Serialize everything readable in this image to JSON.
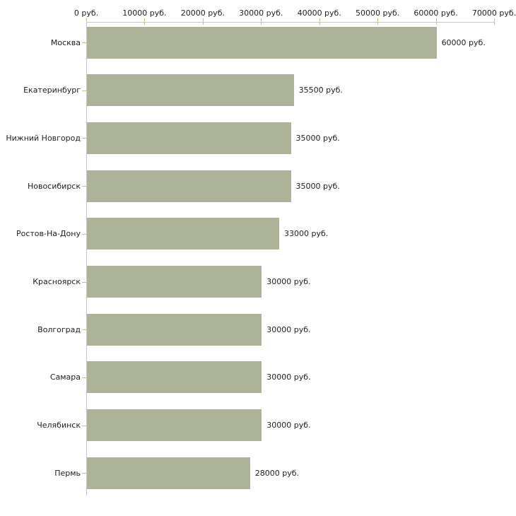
{
  "chart_data": {
    "type": "bar",
    "orientation": "horizontal",
    "title": "",
    "categories": [
      "Москва",
      "Екатеринбург",
      "Нижний Новгород",
      "Новосибирск",
      "Ростов-На-Дону",
      "Красноярск",
      "Волгоград",
      "Самара",
      "Челябинск",
      "Пермь"
    ],
    "values": [
      60000,
      35500,
      35000,
      35000,
      33000,
      30000,
      30000,
      30000,
      30000,
      28000
    ],
    "bar_labels": [
      "60000 руб.",
      "35500 руб.",
      "35000 руб.",
      "35000 руб.",
      "33000 руб.",
      "30000 руб.",
      "30000 руб.",
      "30000 руб.",
      "30000 руб.",
      "28000 руб."
    ],
    "x_axis": {
      "position": "top",
      "min": 0,
      "max": 70000,
      "tick_interval": 10000,
      "tick_labels": [
        "0 руб.",
        "10000 руб.",
        "20000 руб.",
        "30000 руб.",
        "40000 руб.",
        "50000 руб.",
        "60000 руб.",
        "70000 руб."
      ]
    },
    "unit": "руб.",
    "grid": false,
    "legend": false,
    "colors": {
      "bar": "#acb399",
      "axis_line": "#c8c8c8",
      "tick_mark": "#c2c68e",
      "label_text": "#222222",
      "background": "#ffffff"
    }
  }
}
